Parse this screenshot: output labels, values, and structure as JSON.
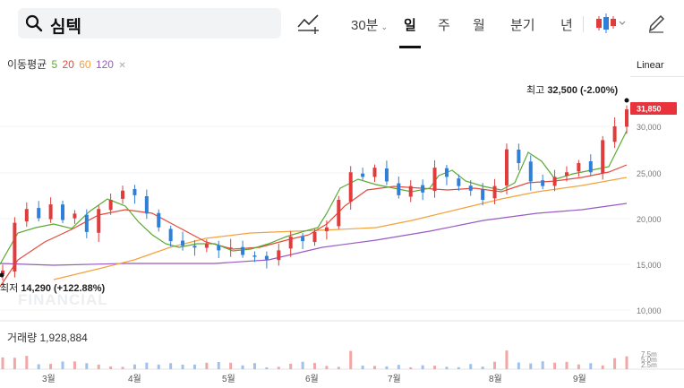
{
  "search": {
    "query": "심텍"
  },
  "toolbar": {
    "period_30min": "30분",
    "periods": [
      "일",
      "주",
      "월",
      "분기",
      "년"
    ],
    "active_period": "일"
  },
  "ma_legend": {
    "label": "이동평균",
    "p5": "5",
    "p20": "20",
    "p60": "60",
    "p120": "120"
  },
  "scale_mode": "Linear",
  "price_axis": {
    "labels": [
      "30,000",
      "25,000",
      "20,000",
      "15,000",
      "10,000"
    ],
    "current": "31,850"
  },
  "annotations": {
    "high_label": "최고",
    "high_value": "32,500 (-2.00%)",
    "low_label": "최저",
    "low_value": "14,290 (+122.88%)"
  },
  "volume": {
    "label": "거래량",
    "value": "1,928,884",
    "axis": [
      "7.5m",
      "5.0m",
      "2.5m"
    ]
  },
  "x_axis": [
    "3월",
    "4월",
    "5월",
    "6월",
    "7월",
    "8월",
    "9월"
  ],
  "watermark": "FINANCIAL",
  "colors": {
    "up": "#e03c3c",
    "down": "#2f7fd8",
    "ma5": "#5aaa34",
    "ma20": "#e24a3c",
    "ma60": "#f4a23c",
    "ma120": "#9a5bc4",
    "current_badge": "#e8323c"
  },
  "chart_data": {
    "type": "candlestick",
    "x_range_months": [
      "2021-03",
      "2021-09"
    ],
    "y_range": [
      10000,
      33000
    ],
    "high": 32500,
    "low": 14290,
    "current": 31850,
    "moving_averages": [
      5,
      20,
      60,
      120
    ],
    "approx_closes": [
      14300,
      19500,
      21000,
      20000,
      21500,
      19800,
      20500,
      18500,
      21000,
      22000,
      23000,
      22500,
      20500,
      19000,
      17500,
      17000,
      16800,
      17200,
      16500,
      16800,
      16000,
      15800,
      15500,
      16500,
      18000,
      17500,
      18500,
      19000,
      22000,
      25000,
      24500,
      25500,
      24000,
      22500,
      23500,
      22800,
      25500,
      24500,
      23500,
      23000,
      22000,
      23500,
      27500,
      26000,
      24000,
      23500,
      24500,
      25000,
      26000,
      25000,
      28500,
      30000,
      31850
    ]
  }
}
